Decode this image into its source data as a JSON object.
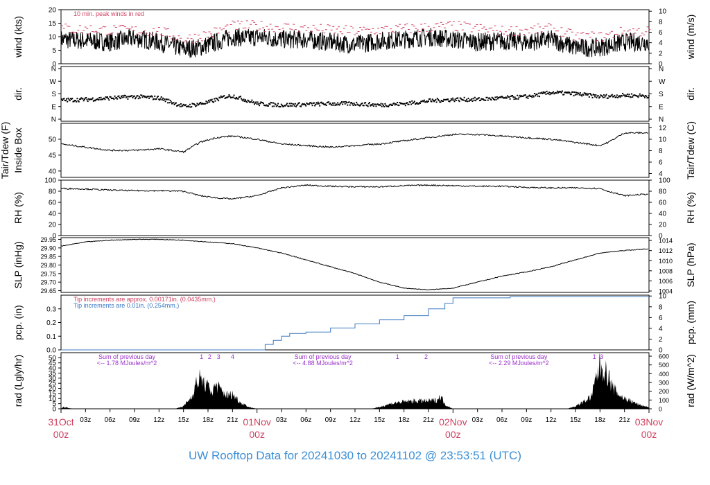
{
  "footer_title": "UW Rooftop Data for 20241030  to  20241102 @ 23:53:51  (UTC)",
  "colors": {
    "text": "#000000",
    "accent_red": "#d04060",
    "accent_blue": "#3b78c2",
    "accent_purple": "#9b30c8",
    "title_blue": "#3b8fd6"
  },
  "x_axis": {
    "range_hours": [
      0,
      72
    ],
    "day_labels": [
      {
        "h": 0,
        "top": "31Oct",
        "bottom": "00z"
      },
      {
        "h": 24,
        "top": "01Nov",
        "bottom": "00z"
      },
      {
        "h": 48,
        "top": "02Nov",
        "bottom": "00z"
      },
      {
        "h": 72,
        "top": "03Nov",
        "bottom": "00z"
      }
    ],
    "hour_labels": [
      {
        "h": 3,
        "label": "03z"
      },
      {
        "h": 6,
        "label": "06z"
      },
      {
        "h": 9,
        "label": "09z"
      },
      {
        "h": 12,
        "label": "12z"
      },
      {
        "h": 15,
        "label": "15z"
      },
      {
        "h": 18,
        "label": "18z"
      },
      {
        "h": 21,
        "label": "21z"
      },
      {
        "h": 27,
        "label": "03z"
      },
      {
        "h": 30,
        "label": "06z"
      },
      {
        "h": 33,
        "label": "09z"
      },
      {
        "h": 36,
        "label": "12z"
      },
      {
        "h": 39,
        "label": "15z"
      },
      {
        "h": 42,
        "label": "18z"
      },
      {
        "h": 45,
        "label": "21z"
      },
      {
        "h": 51,
        "label": "03z"
      },
      {
        "h": 54,
        "label": "06z"
      },
      {
        "h": 57,
        "label": "09z"
      },
      {
        "h": 60,
        "label": "12z"
      },
      {
        "h": 63,
        "label": "15z"
      },
      {
        "h": 66,
        "label": "18z"
      },
      {
        "h": 69,
        "label": "21z"
      }
    ]
  },
  "chart_data": [
    {
      "type": "line",
      "panel": "wind",
      "ylabel": "wind (kts)",
      "ylabel_right": "wind (m/s)",
      "ylim": [
        0,
        20
      ],
      "left_ticks": [
        "0",
        "5",
        "10",
        "15",
        "20"
      ],
      "right_ticks": [
        "0",
        "2",
        "4",
        "6",
        "8",
        "10"
      ],
      "annotation": "10 min. peak winds in red",
      "series": [
        {
          "key": "wind",
          "color": "#000000",
          "x": [
            0,
            3,
            6,
            9,
            12,
            15,
            17,
            18,
            19,
            20,
            21,
            23,
            24,
            27,
            30,
            33,
            36,
            39,
            42,
            45,
            48,
            51,
            54,
            57,
            60,
            63,
            66,
            69,
            72
          ],
          "y": [
            9,
            8.5,
            8,
            9.5,
            8,
            5.5,
            6,
            7,
            8,
            9,
            10,
            9.5,
            10,
            9,
            9,
            8,
            7,
            8.5,
            9,
            10,
            9,
            8,
            8.5,
            8,
            9,
            6,
            6,
            8,
            8
          ]
        },
        {
          "key": "gust",
          "color": "#d04060",
          "x": [
            0,
            6,
            12,
            15,
            18,
            21,
            24,
            30,
            36,
            42,
            48,
            54,
            60,
            63,
            66,
            69,
            72
          ],
          "y": [
            13,
            12.5,
            12,
            9,
            11,
            14,
            14,
            13,
            12,
            13,
            14,
            12,
            13,
            10,
            10,
            12,
            12
          ]
        }
      ]
    },
    {
      "type": "scatter",
      "panel": "dir",
      "ylabel": "dir.",
      "ylabel_right": "dir.",
      "left_ticks": [
        "N",
        "E",
        "S",
        "W",
        "N"
      ],
      "right_ticks": [
        "N",
        "E",
        "S",
        "W",
        "N"
      ],
      "series": [
        {
          "key": "dir",
          "color": "#000000",
          "x": [
            0,
            3,
            6,
            9,
            12,
            15,
            18,
            20,
            21,
            24,
            27,
            30,
            33,
            36,
            39,
            42,
            45,
            48,
            51,
            54,
            57,
            60,
            63,
            66,
            69,
            72
          ],
          "y": [
            135,
            140,
            150,
            160,
            150,
            90,
            120,
            160,
            165,
            110,
            100,
            105,
            110,
            110,
            100,
            110,
            130,
            140,
            140,
            150,
            160,
            190,
            180,
            160,
            170,
            165
          ]
        }
      ]
    },
    {
      "type": "line",
      "panel": "temp",
      "ylabel": "Tair/Tdew (F)",
      "ylabel2": "Inside Box",
      "ylabel_right": "Tair/Tdew (C)",
      "ylim": [
        38,
        55
      ],
      "left_ticks": [
        "40",
        "45",
        "50"
      ],
      "right_ticks": [
        "4",
        "6",
        "8",
        "10",
        "12"
      ],
      "series": [
        {
          "key": "tair",
          "color": "#000000",
          "x": [
            0,
            3,
            6,
            9,
            12,
            15,
            17,
            19,
            21,
            24,
            27,
            30,
            33,
            36,
            39,
            42,
            45,
            48,
            51,
            54,
            57,
            60,
            63,
            66,
            67,
            68,
            69,
            72
          ],
          "y": [
            48.5,
            47.5,
            46.5,
            46.5,
            47,
            46,
            49,
            50.5,
            51,
            50,
            48.5,
            48,
            47.5,
            48,
            48.5,
            49.5,
            50.5,
            51.5,
            51.5,
            51,
            50.5,
            50,
            49,
            48,
            49,
            50.5,
            52,
            52
          ]
        }
      ]
    },
    {
      "type": "line",
      "panel": "rh",
      "ylabel": "RH (%)",
      "ylabel_right": "RH (%)",
      "ylim": [
        0,
        100
      ],
      "left_ticks": [
        "0",
        "20",
        "40",
        "60",
        "80",
        "100"
      ],
      "right_ticks": [
        "0",
        "20",
        "40",
        "60",
        "80",
        "100"
      ],
      "series": [
        {
          "key": "rh",
          "color": "#000000",
          "x": [
            0,
            3,
            6,
            9,
            12,
            15,
            17,
            19,
            21,
            24,
            27,
            30,
            33,
            36,
            39,
            42,
            45,
            48,
            51,
            54,
            57,
            60,
            63,
            66,
            67,
            69,
            72
          ],
          "y": [
            85,
            84,
            82,
            81,
            81,
            80,
            72,
            68,
            66,
            72,
            86,
            91,
            89,
            88,
            88,
            90,
            91,
            90,
            89,
            89,
            87,
            86,
            86,
            85,
            80,
            72,
            75
          ]
        }
      ]
    },
    {
      "type": "line",
      "panel": "slp",
      "ylabel": "SLP (inHg)",
      "ylabel_right": "SLP (hPa)",
      "ylim": [
        29.64,
        29.96
      ],
      "left_ticks": [
        "29.65",
        "29.70",
        "29.75",
        "29.80",
        "29.85",
        "29.90",
        "29.95"
      ],
      "right_ticks": [
        "1004",
        "1006",
        "1008",
        "1010",
        "1012",
        "1014"
      ],
      "series": [
        {
          "key": "slp",
          "color": "#000000",
          "x": [
            0,
            3,
            6,
            9,
            12,
            15,
            18,
            21,
            24,
            27,
            30,
            33,
            36,
            39,
            42,
            45,
            48,
            51,
            54,
            57,
            60,
            63,
            66,
            69,
            72
          ],
          "y": [
            29.91,
            29.935,
            29.945,
            29.95,
            29.95,
            29.945,
            29.935,
            29.925,
            29.9,
            29.87,
            29.83,
            29.79,
            29.75,
            29.7,
            29.665,
            29.655,
            29.665,
            29.7,
            29.735,
            29.76,
            29.79,
            29.83,
            29.87,
            29.885,
            29.895
          ]
        }
      ]
    },
    {
      "type": "line",
      "panel": "pcp",
      "ylabel": "pcp. (in)",
      "ylabel_right": "pcp. (mm)",
      "ylim": [
        0,
        0.4
      ],
      "left_ticks": [
        "0.0",
        "0.1",
        "0.2",
        "0.3"
      ],
      "right_ticks": [
        "0",
        "2",
        "4",
        "6",
        "8",
        "10"
      ],
      "annotations": [
        "Tip increments are approx. 0.00171in. (0.0435mm.)",
        "Tip increments are 0.01in. (0.254mm.)"
      ],
      "series": [
        {
          "key": "pcp",
          "color": "#3b78c2",
          "x": [
            0,
            24,
            25,
            26,
            27,
            28,
            30,
            33,
            36,
            39,
            42,
            45,
            47,
            48,
            51,
            54,
            55,
            60,
            72
          ],
          "y": [
            0,
            0,
            0.04,
            0.07,
            0.1,
            0.12,
            0.13,
            0.16,
            0.19,
            0.22,
            0.25,
            0.3,
            0.34,
            0.38,
            0.38,
            0.38,
            0.39,
            0.39,
            0.39
          ]
        }
      ]
    },
    {
      "type": "area",
      "panel": "rad",
      "ylabel": "rad (Lgly/hr)",
      "ylabel_right": "rad (W/m^2)",
      "ylim": [
        0,
        55
      ],
      "left_ticks": [
        "0",
        "5",
        "10",
        "15",
        "20",
        "25",
        "30",
        "35",
        "40",
        "45",
        "50"
      ],
      "right_ticks": [
        "0",
        "100",
        "200",
        "300",
        "400",
        "500",
        "600"
      ],
      "annotations": [
        {
          "h": 4.5,
          "line1": "Sum of previous day",
          "line2": "<-- 1.78 MJoules/m^2"
        },
        {
          "h": 28.5,
          "line1": "Sum of previous day",
          "line2": "<-- 4.88 MJoules/m^2"
        },
        {
          "h": 52.5,
          "line1": "Sum of previous day",
          "line2": "<-- 2.29 MJoules/m^2"
        }
      ],
      "markers": [
        {
          "h": 17.2,
          "label": "1"
        },
        {
          "h": 18.2,
          "label": "2"
        },
        {
          "h": 19.3,
          "label": "3"
        },
        {
          "h": 21.0,
          "label": "4"
        },
        {
          "h": 41.2,
          "label": "1"
        },
        {
          "h": 44.7,
          "label": "2"
        },
        {
          "h": 65.3,
          "label": "1"
        },
        {
          "h": 66.2,
          "label": "3"
        }
      ],
      "series": [
        {
          "key": "rad",
          "color": "#000000",
          "x": [
            0,
            0.3,
            1,
            1.4,
            14,
            15,
            16,
            16.5,
            17,
            17.5,
            18,
            18.5,
            19,
            19.5,
            20,
            20.5,
            21,
            21.5,
            22,
            22.5,
            23,
            24,
            38,
            39,
            40,
            41,
            42,
            43,
            44,
            45,
            46,
            46.5,
            47,
            48,
            62,
            63,
            64,
            65,
            65.5,
            66,
            66.5,
            67,
            67.5,
            68,
            68.5,
            69,
            70,
            71,
            72
          ],
          "y": [
            0,
            2,
            1,
            0,
            0,
            3,
            14,
            28,
            35,
            30,
            25,
            20,
            28,
            22,
            18,
            15,
            17,
            12,
            7,
            5,
            2,
            0,
            0,
            2,
            5,
            7,
            8,
            9,
            9,
            9,
            10,
            15,
            5,
            0,
            0,
            3,
            8,
            15,
            35,
            50,
            45,
            38,
            25,
            20,
            15,
            12,
            8,
            4,
            2
          ]
        }
      ]
    }
  ]
}
